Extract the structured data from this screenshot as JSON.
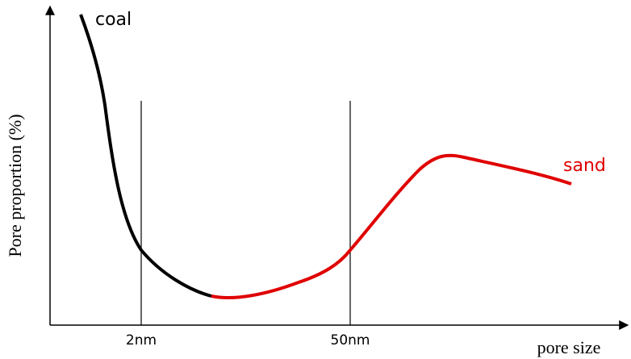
{
  "y_axis": {
    "label": "Pore proportion (%)"
  },
  "x_axis": {
    "label": "pore size"
  },
  "markers": [
    {
      "label": "2nm"
    },
    {
      "label": "50nm"
    }
  ],
  "curves": [
    {
      "label": "coal"
    },
    {
      "label": "sand"
    }
  ]
}
